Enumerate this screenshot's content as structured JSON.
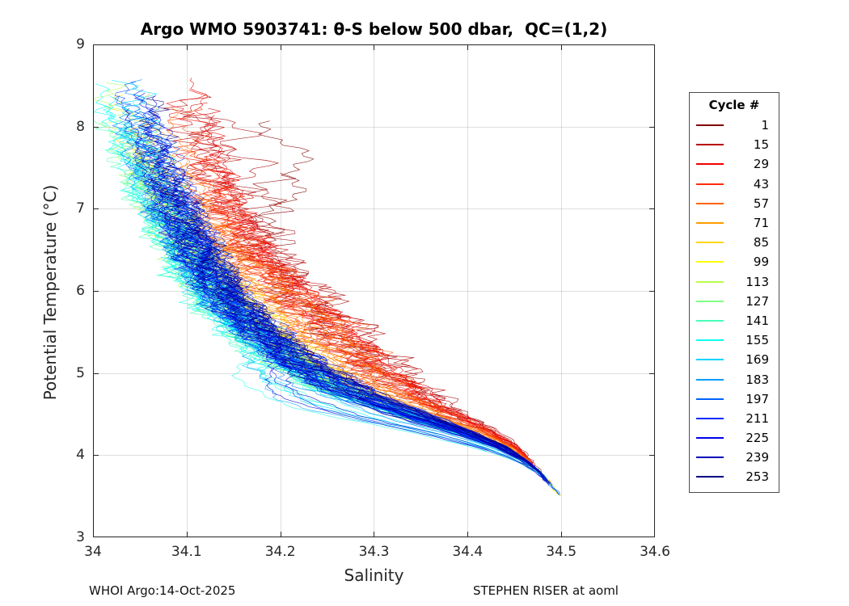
{
  "title": "Argo WMO 5903741: θ-S below 500 dbar,  QC=(1,2)",
  "axes": {
    "xlabel": "Salinity",
    "ylabel": "Potential Temperature (°C)"
  },
  "footer": {
    "left": "WHOI Argo:14-Oct-2025",
    "right": "STEPHEN RISER at aoml"
  },
  "legend": {
    "title": "Cycle #",
    "entries": [
      {
        "label": "1",
        "color": "#800000"
      },
      {
        "label": "15",
        "color": "#B80000"
      },
      {
        "label": "29",
        "color": "#F10000"
      },
      {
        "label": "43",
        "color": "#FF2B00"
      },
      {
        "label": "57",
        "color": "#FF6300"
      },
      {
        "label": "71",
        "color": "#FF9C00"
      },
      {
        "label": "85",
        "color": "#FFD500"
      },
      {
        "label": "99",
        "color": "#FFFF00"
      },
      {
        "label": "113",
        "color": "#B8FF47"
      },
      {
        "label": "127",
        "color": "#80FF80"
      },
      {
        "label": "141",
        "color": "#47FFB8"
      },
      {
        "label": "155",
        "color": "#0EFFF1"
      },
      {
        "label": "169",
        "color": "#00D5FF"
      },
      {
        "label": "183",
        "color": "#009CFF"
      },
      {
        "label": "197",
        "color": "#0063FF"
      },
      {
        "label": "211",
        "color": "#002BFF"
      },
      {
        "label": "225",
        "color": "#0000F1"
      },
      {
        "label": "239",
        "color": "#0000B8"
      },
      {
        "label": "253",
        "color": "#000080"
      }
    ]
  },
  "chart_data": {
    "type": "line",
    "title": "Argo WMO 5903741: θ-S below 500 dbar,  QC=(1,2)",
    "xlabel": "Salinity",
    "ylabel": "Potential Temperature (°C)",
    "xlim": [
      34,
      34.6
    ],
    "ylim": [
      3,
      9
    ],
    "xticks": [
      34,
      34.1,
      34.2,
      34.3,
      34.4,
      34.5,
      34.6
    ],
    "xtick_labels": [
      "34",
      "34.1",
      "34.2",
      "34.3",
      "34.4",
      "34.5",
      "34.6"
    ],
    "yticks": [
      3,
      4,
      5,
      6,
      7,
      8,
      9
    ],
    "ytick_labels": [
      "3",
      "4",
      "5",
      "6",
      "7",
      "8",
      "9"
    ],
    "grid": true,
    "legend_position": "right-outside",
    "legend_title": "Cycle #",
    "legend_cycles": [
      1,
      15,
      29,
      43,
      57,
      71,
      85,
      99,
      113,
      127,
      141,
      155,
      169,
      183,
      197,
      211,
      225,
      239,
      253
    ],
    "colormap": "jet-reversed (cycle 1 = dark red, cycle 253 = dark blue)",
    "description": "Theta-S profile curves below 500 dbar for Argo float cycles 1-253; warm colors (early cycles) sit at higher salinity in mid-range temperatures, cool colors (late cycles) fresher; all converge to a tight bundle ending near S=34.47-34.52, theta=3.5-4.0",
    "base_curve_theta_salinity": [
      [
        8.6,
        34.045
      ],
      [
        8.2,
        34.055
      ],
      [
        7.8,
        34.065
      ],
      [
        7.4,
        34.078
      ],
      [
        7.0,
        34.094
      ],
      [
        6.6,
        34.112
      ],
      [
        6.2,
        34.132
      ],
      [
        5.8,
        34.158
      ],
      [
        5.4,
        34.196
      ],
      [
        5.1,
        34.232
      ],
      [
        4.9,
        34.262
      ],
      [
        4.7,
        34.3
      ],
      [
        4.5,
        34.346
      ],
      [
        4.3,
        34.396
      ],
      [
        4.1,
        34.438
      ],
      [
        3.95,
        34.46
      ],
      [
        3.8,
        34.476
      ],
      [
        3.65,
        34.488
      ],
      [
        3.5,
        34.5
      ]
    ],
    "envelope_theta_smin_smax": [
      [
        8.0,
        34.04,
        34.17
      ],
      [
        7.0,
        34.05,
        34.27
      ],
      [
        6.0,
        34.07,
        34.3
      ],
      [
        5.5,
        34.09,
        34.35
      ],
      [
        5.0,
        34.15,
        34.38
      ],
      [
        4.5,
        34.2,
        34.44
      ],
      [
        4.0,
        34.38,
        34.49
      ],
      [
        3.6,
        34.45,
        34.52
      ]
    ],
    "render": {
      "n_curves": 170,
      "seed": 42,
      "line_width": 0.65,
      "alpha": 0.85,
      "grid_color": "rgba(0,0,0,0.13)",
      "axis_color": "#262626",
      "tick_len": 6
    }
  }
}
